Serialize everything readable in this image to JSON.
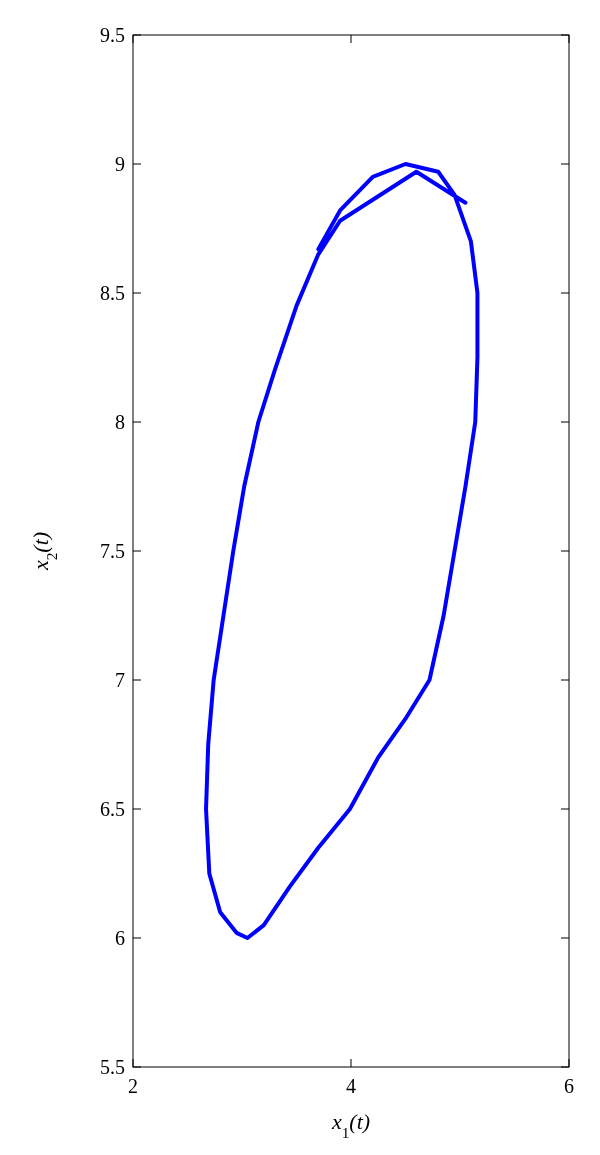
{
  "chart_data": {
    "type": "line",
    "xlabel": "x$_{1}$(t)",
    "ylabel": "x$_{2}$(t)",
    "xlim": [
      2,
      6
    ],
    "ylim": [
      5.5,
      9.5
    ],
    "xticks": [
      2,
      4,
      6
    ],
    "yticks": [
      5.5,
      6,
      6.5,
      7,
      7.5,
      8,
      8.5,
      9,
      9.5
    ],
    "grid": false,
    "marker": "none",
    "line_style": "solid",
    "series": [
      {
        "color": "#0000ff",
        "x": [
          5.05,
          4.6,
          3.9,
          3.7,
          3.5,
          3.3,
          3.15,
          3.02,
          2.92,
          2.83,
          2.74,
          2.69,
          2.67,
          2.7,
          2.8,
          2.95,
          3.05,
          3.2,
          3.44,
          3.7,
          3.99,
          4.25,
          4.5,
          4.72,
          4.85,
          4.95,
          5.05,
          5.14,
          5.16,
          5.16,
          5.1,
          4.95,
          4.8,
          4.5,
          4.2,
          3.9,
          3.7
        ],
        "values": [
          8.85,
          8.97,
          8.78,
          8.65,
          8.45,
          8.2,
          8.0,
          7.75,
          7.5,
          7.25,
          7.0,
          6.75,
          6.5,
          6.25,
          6.1,
          6.02,
          6.0,
          6.05,
          6.2,
          6.35,
          6.5,
          6.7,
          6.85,
          7.0,
          7.25,
          7.5,
          7.75,
          8.0,
          8.25,
          8.5,
          8.7,
          8.88,
          8.97,
          9.0,
          8.95,
          8.82,
          8.67
        ]
      }
    ]
  }
}
